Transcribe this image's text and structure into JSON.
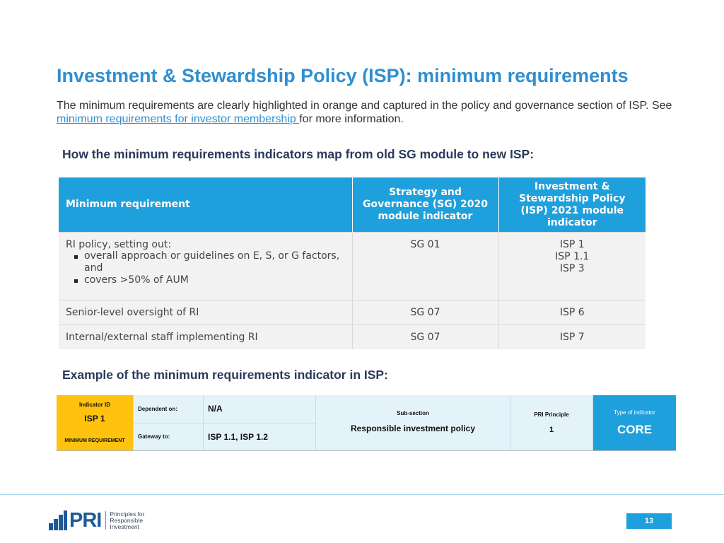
{
  "title": "Investment & Stewardship Policy (ISP): minimum requirements",
  "intro": {
    "text_before": "The minimum requirements are clearly highlighted in orange and captured in the policy and governance section of ISP. See ",
    "link": "minimum requirements for investor membership ",
    "text_after": "for more information."
  },
  "map_heading": "How the minimum requirements indicators map from old SG module to new ISP:",
  "map_table": {
    "headers": [
      "Minimum requirement",
      "Strategy and Governance (SG) 2020 module indicator",
      "Investment & Stewardship Policy (ISP) 2021 module indicator"
    ],
    "row1": {
      "req_title": "RI policy, setting out:",
      "bullets": [
        "overall approach or guidelines on E, S, or G factors, and",
        "covers >50% of AUM"
      ],
      "sg": "SG 01",
      "isp": [
        "ISP 1",
        "ISP 1.1",
        "ISP 3"
      ]
    },
    "row2": {
      "req": "Senior-level oversight of RI",
      "sg": "SG 07",
      "isp": "ISP 6"
    },
    "row3": {
      "req": "Internal/external staff implementing RI",
      "sg": "SG 07",
      "isp": "ISP 7"
    }
  },
  "example_heading": "Example of the minimum requirements indicator in ISP:",
  "indicator": {
    "id_label": "Indicator ID",
    "id_value": "ISP 1",
    "min_label": "MINIMUM REQUIREMENT",
    "dependent_label": "Dependent on:",
    "dependent_value": "N/A",
    "gateway_label": "Gateway to:",
    "gateway_value": "ISP 1.1, ISP 1.2",
    "subsection_label": "Sub-section",
    "subsection_value": "Responsible investment policy",
    "principle_label": "PRI Principle",
    "principle_value": "1",
    "type_label": "Type of indicator",
    "type_value": "CORE"
  },
  "footer": {
    "logo_text": "PRI",
    "logo_lines": [
      "Principles for",
      "Responsible",
      "Investment"
    ],
    "page_number": "13"
  },
  "colors": {
    "accent": "#1ea0dc",
    "title": "#2f8fd0",
    "min_req": "#fec20f",
    "logo": "#1f5a96"
  }
}
